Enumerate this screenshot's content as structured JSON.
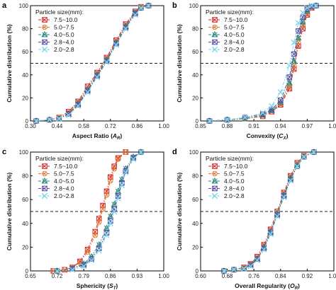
{
  "figure": {
    "legend_title": "Particle size(mm):",
    "ylabel": "Cumulative distribution (%)",
    "ref_line_value": 50,
    "series": [
      {
        "name": "7.5~10.0",
        "color": "#d62728",
        "marker": "box-x"
      },
      {
        "name": "5.0~7.5",
        "color": "#e07b39",
        "marker": "circle-x"
      },
      {
        "name": "4.0~5.0",
        "color": "#2a8a7a",
        "marker": "triangle-x"
      },
      {
        "name": "2.8~4.0",
        "color": "#5b4ca3",
        "marker": "box-x"
      },
      {
        "name": "2.0~2.8",
        "color": "#7fd6e8",
        "marker": "x"
      }
    ]
  },
  "chart_data": [
    {
      "type": "line",
      "panel_label": "a",
      "xlabel": "Aspect Ratio",
      "xsym": "A",
      "xsub": "R",
      "xlim": [
        0.3,
        1.0
      ],
      "ylim": [
        0,
        100
      ],
      "xticks": [
        "0.30",
        "0.44",
        "0.58",
        "0.72",
        "0.86",
        "1.00"
      ],
      "yticks": [
        "0",
        "20",
        "40",
        "60",
        "80",
        "100"
      ],
      "legend": "top-left",
      "series": [
        {
          "name": "7.5~10.0",
          "x": [
            0.33,
            0.4,
            0.45,
            0.5,
            0.55,
            0.6,
            0.65,
            0.7,
            0.75,
            0.8,
            0.85,
            0.88,
            0.92
          ],
          "y": [
            0,
            1,
            3,
            8,
            17,
            30,
            42,
            55,
            70,
            84,
            95,
            99,
            100
          ]
        },
        {
          "name": "5.0~7.5",
          "x": [
            0.33,
            0.4,
            0.45,
            0.5,
            0.55,
            0.6,
            0.65,
            0.7,
            0.75,
            0.8,
            0.85,
            0.88,
            0.92
          ],
          "y": [
            0,
            1,
            3,
            7,
            16,
            28,
            41,
            54,
            69,
            83,
            94,
            99,
            100
          ]
        },
        {
          "name": "4.0~5.0",
          "x": [
            0.33,
            0.4,
            0.45,
            0.5,
            0.55,
            0.6,
            0.65,
            0.7,
            0.75,
            0.8,
            0.85,
            0.88,
            0.92
          ],
          "y": [
            0,
            1,
            2,
            6,
            15,
            27,
            40,
            53,
            68,
            82,
            94,
            98,
            100
          ]
        },
        {
          "name": "2.8~4.0",
          "x": [
            0.33,
            0.4,
            0.45,
            0.5,
            0.55,
            0.6,
            0.65,
            0.7,
            0.75,
            0.8,
            0.85,
            0.88,
            0.92
          ],
          "y": [
            0,
            1,
            2,
            6,
            14,
            26,
            39,
            52,
            67,
            81,
            93,
            98,
            100
          ]
        },
        {
          "name": "2.0~2.8",
          "x": [
            0.33,
            0.4,
            0.45,
            0.5,
            0.55,
            0.6,
            0.65,
            0.7,
            0.75,
            0.8,
            0.85,
            0.88,
            0.92
          ],
          "y": [
            0,
            1,
            2,
            5,
            13,
            25,
            38,
            51,
            66,
            80,
            92,
            98,
            100
          ]
        }
      ]
    },
    {
      "type": "line",
      "panel_label": "b",
      "xlabel": "Convexity",
      "xsym": "C",
      "xsub": "X",
      "xlim": [
        0.85,
        1.0
      ],
      "ylim": [
        0,
        100
      ],
      "xticks": [
        "0.85",
        "0.88",
        "0.91",
        "0.94",
        "0.97",
        "1.00"
      ],
      "yticks": [
        "0",
        "20",
        "40",
        "60",
        "80",
        "100"
      ],
      "legend": "top-left",
      "series": [
        {
          "name": "7.5~10.0",
          "x": [
            0.86,
            0.88,
            0.9,
            0.92,
            0.93,
            0.94,
            0.95,
            0.955,
            0.96,
            0.965,
            0.97,
            0.975,
            0.98
          ],
          "y": [
            0,
            1,
            2,
            4,
            8,
            14,
            28,
            45,
            65,
            80,
            92,
            98,
            100
          ]
        },
        {
          "name": "5.0~7.5",
          "x": [
            0.86,
            0.88,
            0.9,
            0.92,
            0.93,
            0.94,
            0.95,
            0.955,
            0.96,
            0.965,
            0.97,
            0.975,
            0.98
          ],
          "y": [
            0,
            1,
            2,
            4,
            8,
            15,
            30,
            48,
            68,
            83,
            93,
            98,
            100
          ]
        },
        {
          "name": "4.0~5.0",
          "x": [
            0.86,
            0.88,
            0.9,
            0.92,
            0.93,
            0.94,
            0.95,
            0.955,
            0.96,
            0.965,
            0.97,
            0.975,
            0.98
          ],
          "y": [
            0,
            1,
            2,
            5,
            9,
            16,
            33,
            52,
            72,
            86,
            95,
            99,
            100
          ]
        },
        {
          "name": "2.8~4.0",
          "x": [
            0.86,
            0.88,
            0.9,
            0.92,
            0.93,
            0.94,
            0.95,
            0.955,
            0.96,
            0.965,
            0.97,
            0.975,
            0.98
          ],
          "y": [
            0,
            1,
            3,
            6,
            10,
            18,
            38,
            58,
            78,
            90,
            97,
            99,
            100
          ]
        },
        {
          "name": "2.0~2.8",
          "x": [
            0.86,
            0.88,
            0.9,
            0.92,
            0.93,
            0.94,
            0.95,
            0.955,
            0.96,
            0.965,
            0.97,
            0.975,
            0.98
          ],
          "y": [
            0,
            1,
            3,
            7,
            13,
            25,
            48,
            68,
            85,
            94,
            98,
            100,
            100
          ]
        }
      ]
    },
    {
      "type": "line",
      "panel_label": "c",
      "xlabel": "Sphericity",
      "xsym": "S",
      "xsub": "T",
      "xlim": [
        0.65,
        1.0
      ],
      "ylim": [
        0,
        100
      ],
      "xticks": [
        "0.65",
        "0.72",
        "0.79",
        "0.86",
        "0.93",
        "1.00"
      ],
      "yticks": [
        "0",
        "20",
        "40",
        "60",
        "80",
        "100"
      ],
      "legend": "top-left",
      "series": [
        {
          "name": "7.5~10.0",
          "x": [
            0.71,
            0.74,
            0.76,
            0.78,
            0.8,
            0.82,
            0.83,
            0.84,
            0.85,
            0.86,
            0.87,
            0.88,
            0.9
          ],
          "y": [
            0,
            1,
            3,
            8,
            18,
            33,
            44,
            55,
            67,
            79,
            88,
            95,
            100
          ]
        },
        {
          "name": "5.0~7.5",
          "x": [
            0.71,
            0.74,
            0.76,
            0.78,
            0.8,
            0.82,
            0.83,
            0.84,
            0.85,
            0.86,
            0.87,
            0.88,
            0.9
          ],
          "y": [
            0,
            1,
            3,
            7,
            16,
            30,
            41,
            52,
            64,
            76,
            86,
            94,
            100
          ]
        },
        {
          "name": "4.0~5.0",
          "x": [
            0.72,
            0.76,
            0.79,
            0.81,
            0.83,
            0.85,
            0.86,
            0.87,
            0.88,
            0.89,
            0.9,
            0.92,
            0.94
          ],
          "y": [
            0,
            2,
            6,
            12,
            22,
            36,
            46,
            56,
            67,
            77,
            86,
            96,
            100
          ]
        },
        {
          "name": "2.8~4.0",
          "x": [
            0.72,
            0.76,
            0.79,
            0.81,
            0.83,
            0.85,
            0.86,
            0.87,
            0.88,
            0.89,
            0.9,
            0.92,
            0.94
          ],
          "y": [
            0,
            2,
            5,
            10,
            19,
            32,
            42,
            52,
            63,
            74,
            84,
            95,
            100
          ]
        },
        {
          "name": "2.0~2.8",
          "x": [
            0.72,
            0.76,
            0.79,
            0.81,
            0.83,
            0.85,
            0.86,
            0.87,
            0.88,
            0.89,
            0.9,
            0.92,
            0.94
          ],
          "y": [
            0,
            1,
            4,
            9,
            17,
            30,
            40,
            50,
            61,
            72,
            83,
            94,
            100
          ]
        }
      ]
    },
    {
      "type": "line",
      "panel_label": "d",
      "xlabel": "Overall Regularity",
      "xsym": "O",
      "xsub": "R",
      "xlim": [
        0.6,
        1.0
      ],
      "ylim": [
        0,
        100
      ],
      "xticks": [
        "0.60",
        "0.68",
        "0.76",
        "0.84",
        "0.92",
        "1.00"
      ],
      "yticks": [
        "0",
        "20",
        "40",
        "60",
        "80",
        "100"
      ],
      "legend": "top-left",
      "series": [
        {
          "name": "7.5~10.0",
          "x": [
            0.67,
            0.7,
            0.73,
            0.75,
            0.77,
            0.79,
            0.81,
            0.83,
            0.85,
            0.87,
            0.89,
            0.91,
            0.94
          ],
          "y": [
            0,
            1,
            3,
            6,
            12,
            22,
            35,
            50,
            66,
            80,
            91,
            97,
            100
          ]
        },
        {
          "name": "5.0~7.5",
          "x": [
            0.67,
            0.7,
            0.73,
            0.75,
            0.77,
            0.79,
            0.81,
            0.83,
            0.85,
            0.87,
            0.89,
            0.91,
            0.94
          ],
          "y": [
            0,
            1,
            3,
            6,
            11,
            21,
            34,
            49,
            65,
            79,
            90,
            97,
            100
          ]
        },
        {
          "name": "4.0~5.0",
          "x": [
            0.67,
            0.7,
            0.73,
            0.75,
            0.77,
            0.79,
            0.81,
            0.83,
            0.85,
            0.87,
            0.89,
            0.91,
            0.94
          ],
          "y": [
            0,
            1,
            2,
            5,
            10,
            20,
            33,
            48,
            64,
            78,
            89,
            96,
            100
          ]
        },
        {
          "name": "2.8~4.0",
          "x": [
            0.67,
            0.7,
            0.73,
            0.75,
            0.77,
            0.79,
            0.81,
            0.83,
            0.85,
            0.87,
            0.89,
            0.91,
            0.94
          ],
          "y": [
            0,
            1,
            2,
            5,
            10,
            19,
            32,
            47,
            63,
            77,
            88,
            96,
            100
          ]
        },
        {
          "name": "2.0~2.8",
          "x": [
            0.67,
            0.7,
            0.73,
            0.75,
            0.77,
            0.79,
            0.81,
            0.83,
            0.85,
            0.87,
            0.89,
            0.91,
            0.94
          ],
          "y": [
            0,
            1,
            2,
            4,
            9,
            18,
            31,
            46,
            62,
            76,
            88,
            96,
            100
          ]
        }
      ]
    }
  ]
}
